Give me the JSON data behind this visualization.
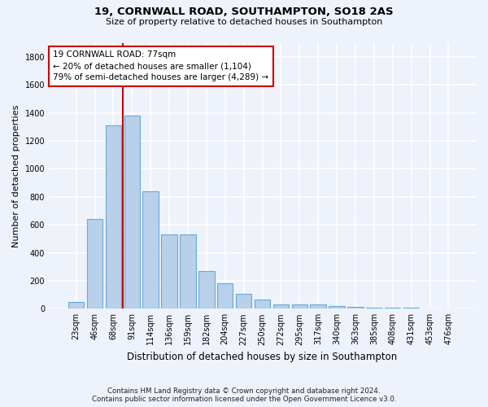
{
  "title1": "19, CORNWALL ROAD, SOUTHAMPTON, SO18 2AS",
  "title2": "Size of property relative to detached houses in Southampton",
  "xlabel": "Distribution of detached houses by size in Southampton",
  "ylabel": "Number of detached properties",
  "categories": [
    "23sqm",
    "46sqm",
    "68sqm",
    "91sqm",
    "114sqm",
    "136sqm",
    "159sqm",
    "182sqm",
    "204sqm",
    "227sqm",
    "250sqm",
    "272sqm",
    "295sqm",
    "317sqm",
    "340sqm",
    "363sqm",
    "385sqm",
    "408sqm",
    "431sqm",
    "453sqm",
    "476sqm"
  ],
  "values": [
    50,
    640,
    1310,
    1380,
    840,
    530,
    530,
    270,
    180,
    105,
    65,
    30,
    30,
    28,
    20,
    15,
    10,
    7,
    5,
    3,
    2
  ],
  "bar_color": "#b8d0ea",
  "bar_edge_color": "#6aaad4",
  "vline_color": "#cc0000",
  "vline_index": 2.5,
  "annotation_text": "19 CORNWALL ROAD: 77sqm\n← 20% of detached houses are smaller (1,104)\n79% of semi-detached houses are larger (4,289) →",
  "annotation_box_color": "white",
  "annotation_box_edge_color": "#cc0000",
  "ylim": [
    0,
    1900
  ],
  "yticks": [
    0,
    200,
    400,
    600,
    800,
    1000,
    1200,
    1400,
    1600,
    1800
  ],
  "footer1": "Contains HM Land Registry data © Crown copyright and database right 2024.",
  "footer2": "Contains public sector information licensed under the Open Government Licence v3.0.",
  "bg_color": "#eef2fb",
  "grid_color": "white"
}
